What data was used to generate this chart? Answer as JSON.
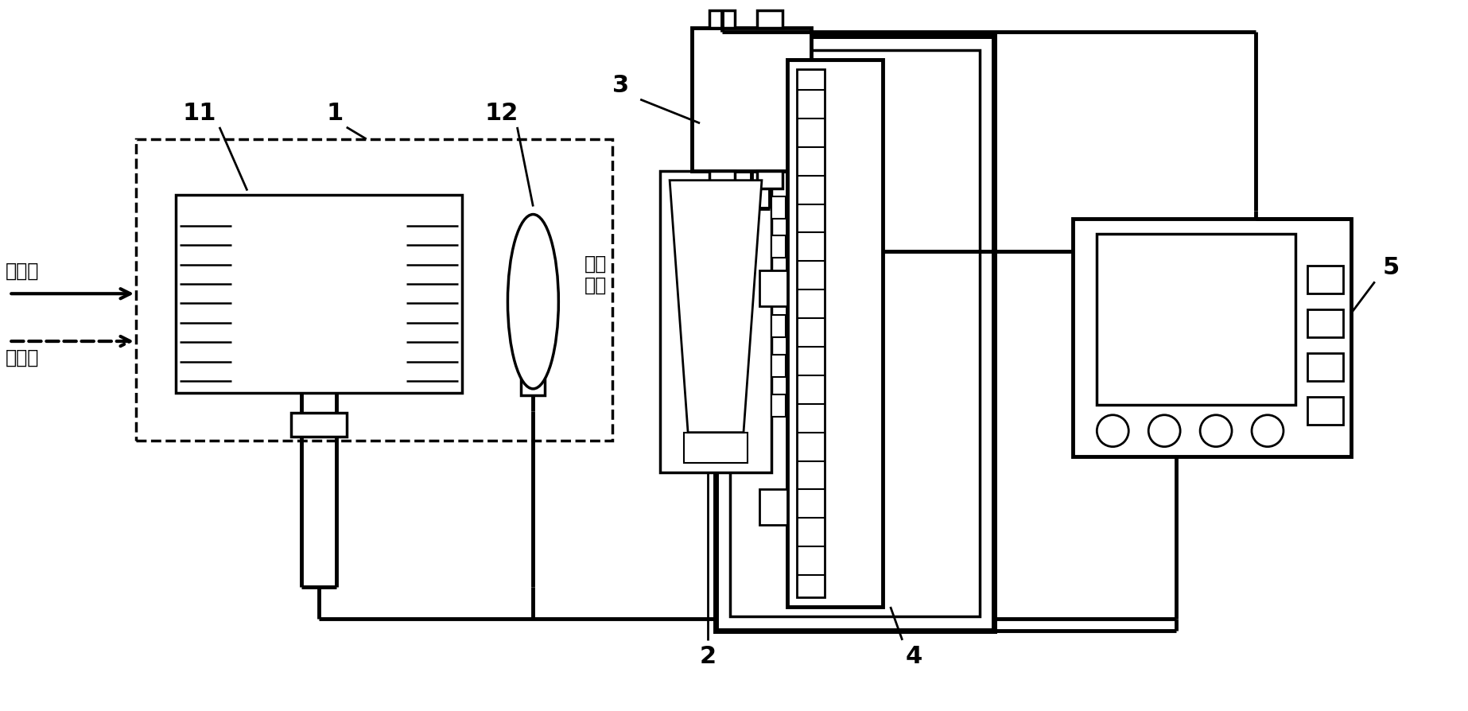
{
  "bg": "#ffffff",
  "lc": "#000000",
  "figsize": [
    18.46,
    8.95
  ],
  "dpi": 100,
  "labels": {
    "visible": "可见光",
    "uv": "紫外光",
    "hv": "高压\n脉冲",
    "n1": "1",
    "n2": "2",
    "n3": "3",
    "n4": "4",
    "n5": "5",
    "n11": "11",
    "n12": "12"
  }
}
